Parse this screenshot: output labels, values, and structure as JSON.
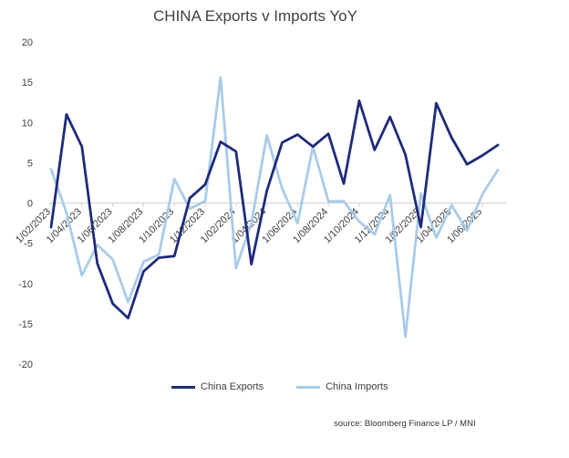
{
  "chart_data": {
    "type": "line",
    "title": "CHINA Exports v Imports YoY",
    "xlabel": "",
    "ylabel": "",
    "ylim": [
      -20,
      20
    ],
    "yticks": [
      20,
      15,
      10,
      5,
      0,
      -5,
      -10,
      -15,
      -20
    ],
    "categories": [
      "1/02/2023",
      "1/03/2023",
      "1/04/2023",
      "1/05/2023",
      "1/06/2023",
      "1/07/2023",
      "1/08/2023",
      "1/09/2023",
      "1/10/2023",
      "1/11/2023",
      "1/12/2023",
      "1/01/2024",
      "1/02/2024",
      "1/03/2024",
      "1/04/2024",
      "1/05/2024",
      "1/06/2024",
      "1/07/2024",
      "1/08/2024",
      "1/09/2024",
      "1/10/2024",
      "1/11/2024",
      "1/12/2024",
      "1/01/2025",
      "1/02/2025",
      "1/03/2025",
      "1/04/2025",
      "1/05/2025",
      "1/06/2025",
      "1/07/2025"
    ],
    "tick_labels": [
      "1/02/2023",
      "1/04/2023",
      "1/06/2023",
      "1/08/2023",
      "1/10/2023",
      "1/12/2023",
      "1/02/2024",
      "1/04/2024",
      "1/06/2024",
      "1/08/2024",
      "1/10/2024",
      "1/12/2024",
      "1/02/2025",
      "1/04/2025",
      "1/06/2025"
    ],
    "series": [
      {
        "name": "China Exports",
        "color": "#1f2a7a",
        "values": [
          -3.0,
          11.0,
          7.0,
          -7.5,
          -12.5,
          -14.3,
          -8.5,
          -6.8,
          -6.6,
          0.6,
          2.3,
          7.6,
          6.4,
          -7.6,
          1.5,
          7.5,
          8.5,
          7.0,
          8.6,
          2.4,
          12.7,
          6.6,
          10.7,
          6.0,
          -3.0,
          12.4,
          8.1,
          4.8,
          5.9,
          7.2
        ]
      },
      {
        "name": "China Imports",
        "color": "#a9cbe8",
        "values": [
          4.2,
          -1.2,
          -9.0,
          -5.2,
          -7.0,
          -12.3,
          -7.3,
          -6.4,
          3.0,
          -0.7,
          0.2,
          15.6,
          -8.1,
          -2.5,
          8.4,
          1.8,
          -2.5,
          7.0,
          0.2,
          0.2,
          -2.3,
          -3.9,
          1.0,
          -16.6,
          1.2,
          -4.3,
          -0.3,
          -3.4,
          1.1,
          4.1
        ]
      }
    ],
    "legend_position": "bottom",
    "grid": false,
    "source": "source: Bloomberg Finance LP / MNI"
  }
}
